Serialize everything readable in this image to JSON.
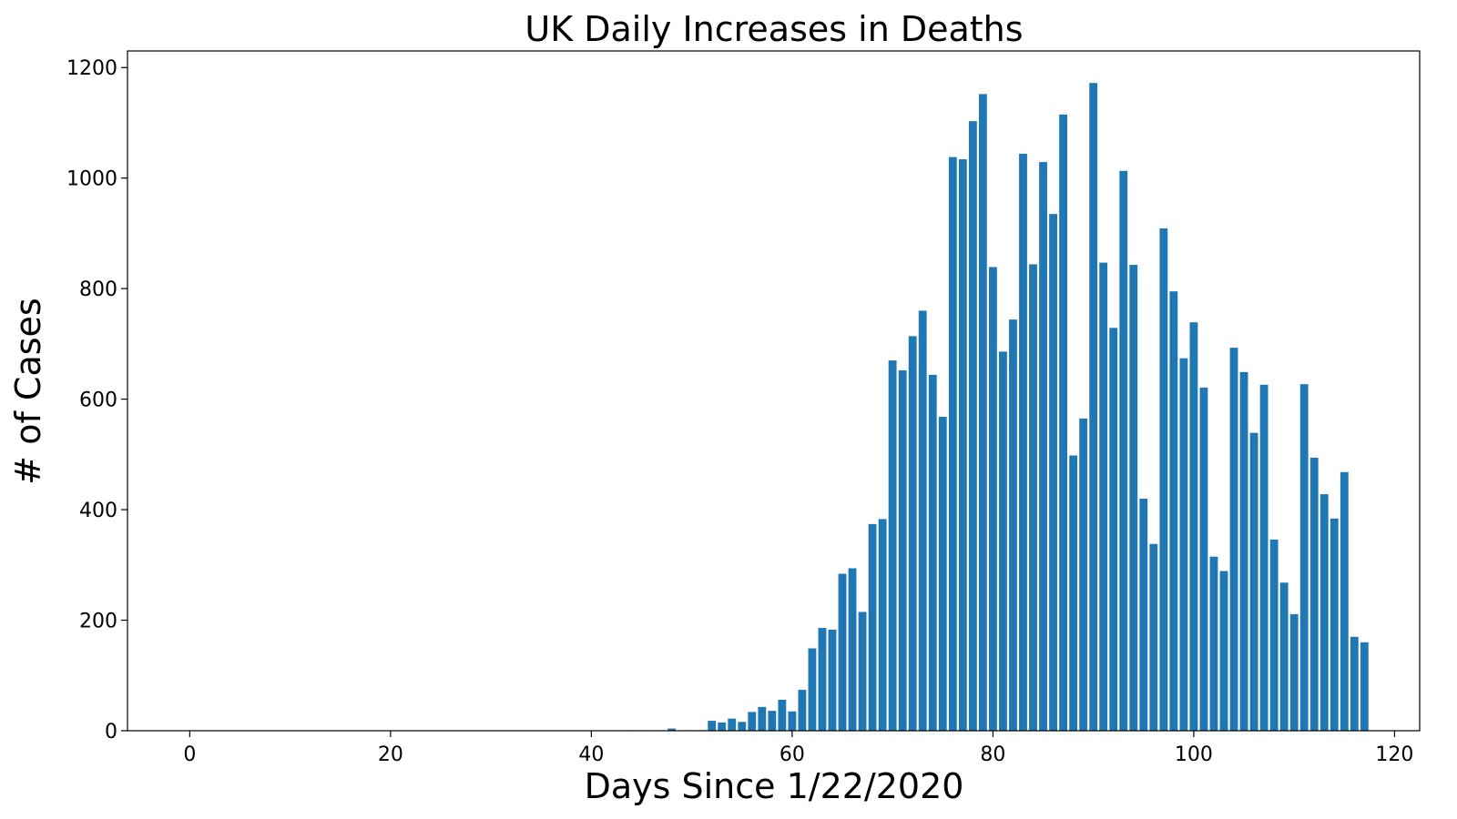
{
  "chart_data": {
    "type": "bar",
    "title": "UK Daily Increases in Deaths",
    "xlabel": "Days Since 1/22/2020",
    "ylabel": "# of Cases",
    "xlim": [
      -6.2,
      122.5
    ],
    "ylim": [
      0,
      1230
    ],
    "xticks": [
      0,
      20,
      40,
      60,
      80,
      100,
      120
    ],
    "yticks": [
      0,
      200,
      400,
      600,
      800,
      1000,
      1200
    ],
    "grid": false,
    "legend": "none",
    "bar_color": "#1f77b4",
    "x": [
      0,
      1,
      2,
      3,
      4,
      5,
      6,
      7,
      8,
      9,
      10,
      11,
      12,
      13,
      14,
      15,
      16,
      17,
      18,
      19,
      20,
      21,
      22,
      23,
      24,
      25,
      26,
      27,
      28,
      29,
      30,
      31,
      32,
      33,
      34,
      35,
      36,
      37,
      38,
      39,
      40,
      41,
      42,
      43,
      44,
      45,
      46,
      47,
      48,
      49,
      50,
      51,
      52,
      53,
      54,
      55,
      56,
      57,
      58,
      59,
      60,
      61,
      62,
      63,
      64,
      65,
      66,
      67,
      68,
      69,
      70,
      71,
      72,
      73,
      74,
      75,
      76,
      77,
      78,
      79,
      80,
      81,
      82,
      83,
      84,
      85,
      86,
      87,
      88,
      89,
      90,
      91,
      92,
      93,
      94,
      95,
      96,
      97,
      98,
      99,
      100,
      101,
      102,
      103,
      104,
      105,
      106,
      107,
      108,
      109,
      110,
      111,
      112,
      113,
      114,
      115,
      116,
      117
    ],
    "values": [
      0,
      0,
      0,
      0,
      0,
      0,
      0,
      0,
      0,
      0,
      0,
      0,
      0,
      0,
      0,
      0,
      0,
      0,
      0,
      0,
      0,
      0,
      0,
      0,
      0,
      0,
      0,
      0,
      0,
      0,
      0,
      0,
      0,
      0,
      0,
      0,
      0,
      0,
      0,
      0,
      0,
      0,
      0,
      0,
      1,
      1,
      0,
      1,
      4,
      0,
      1,
      1,
      18,
      15,
      22,
      16,
      34,
      43,
      36,
      56,
      35,
      74,
      149,
      186,
      183,
      284,
      294,
      215,
      374,
      383,
      670,
      652,
      714,
      760,
      644,
      568,
      1038,
      1034,
      1103,
      1152,
      839,
      686,
      744,
      1044,
      844,
      1029,
      935,
      1115,
      498,
      565,
      1172,
      847,
      729,
      1013,
      843,
      420,
      338,
      909,
      795,
      674,
      739,
      621,
      315,
      289,
      693,
      649,
      539,
      626,
      346,
      268,
      211,
      627,
      494,
      428,
      384,
      468,
      170,
      160
    ]
  }
}
